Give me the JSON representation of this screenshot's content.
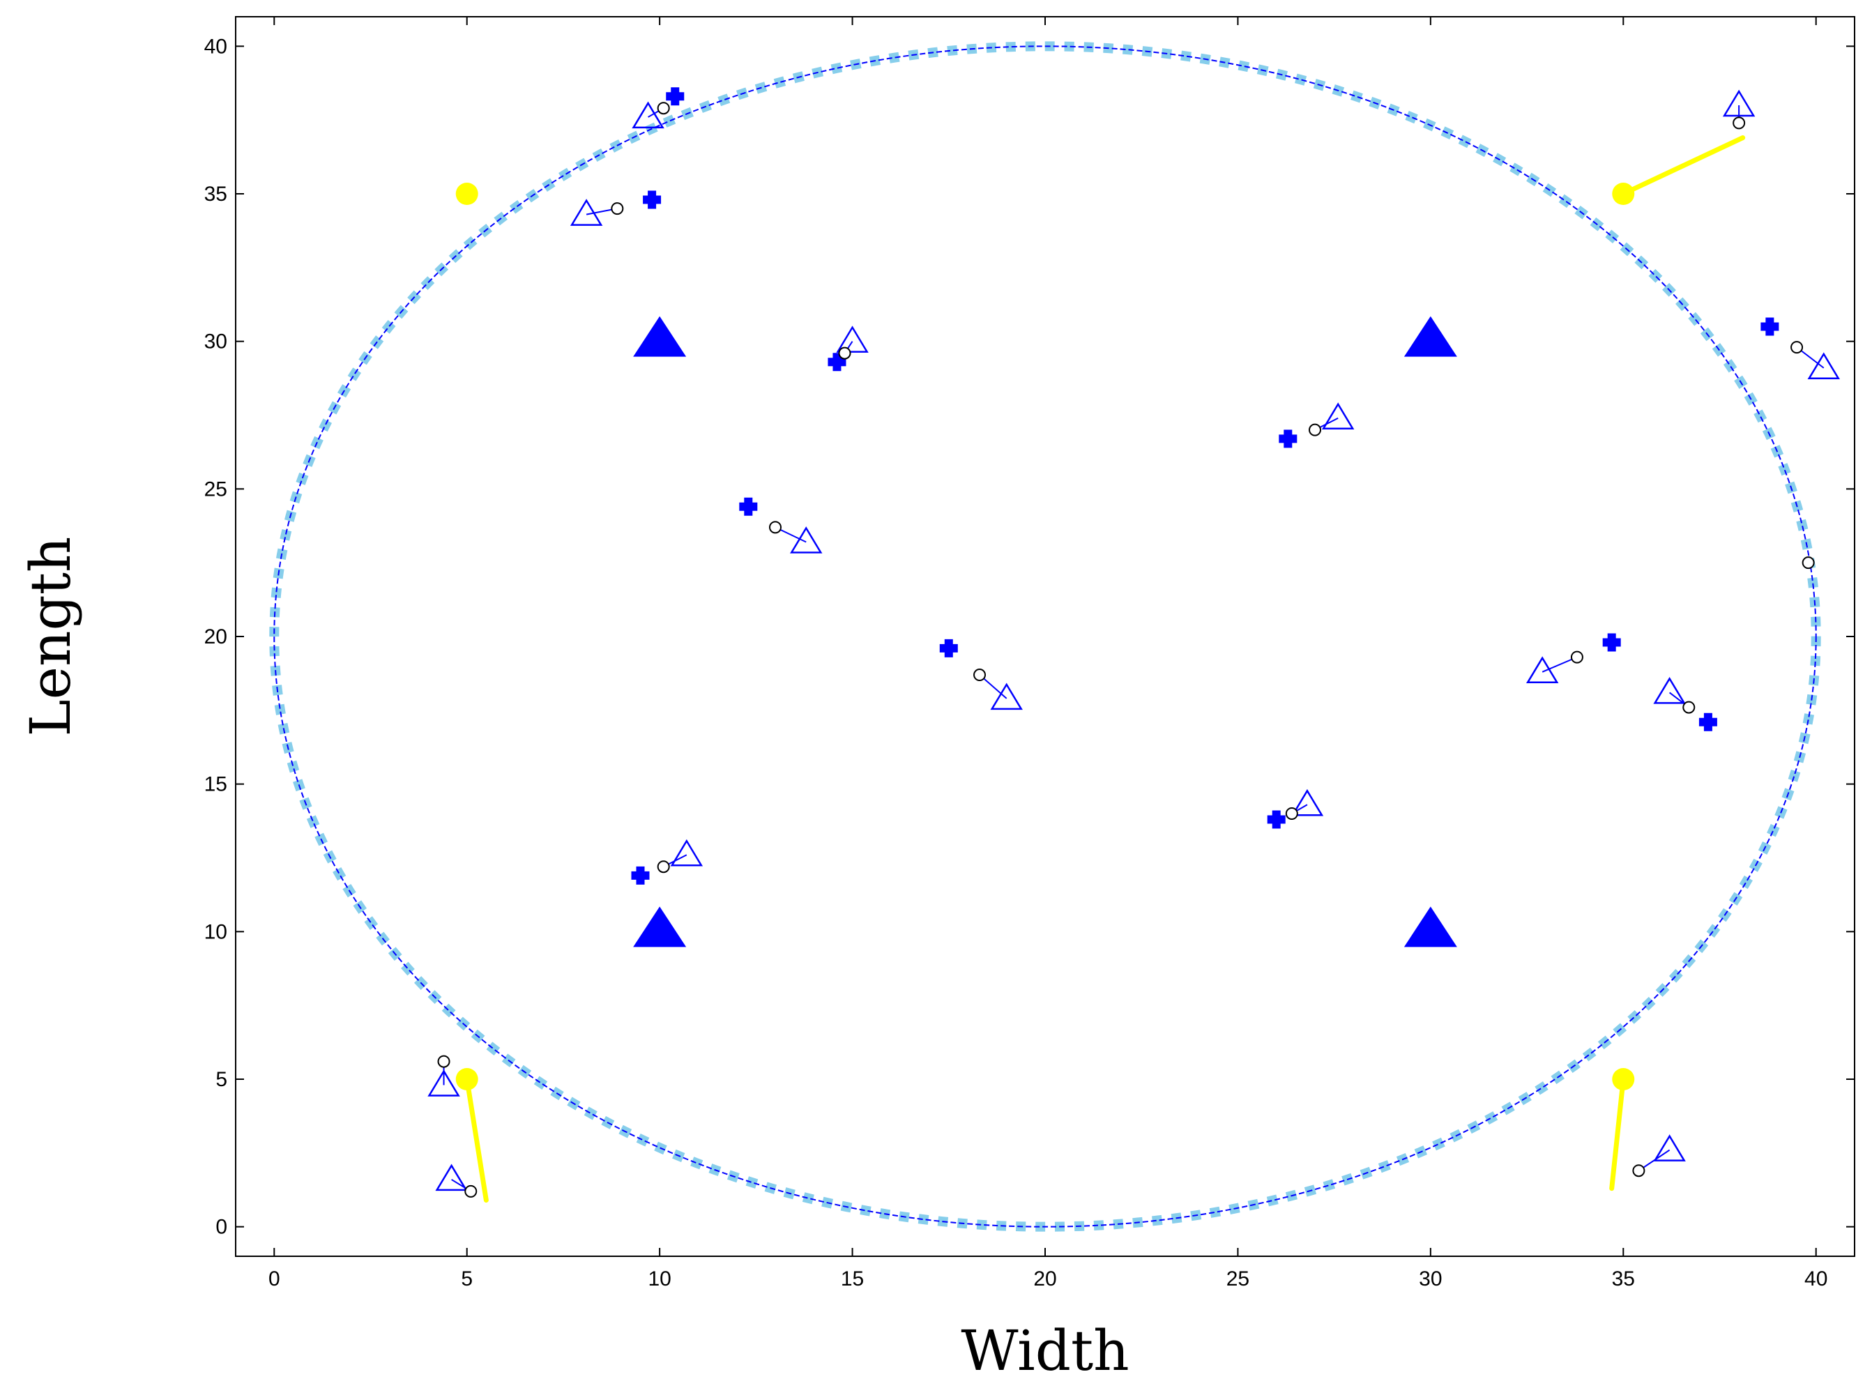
{
  "chart_data": {
    "type": "scatter",
    "xlabel": "Width",
    "ylabel": "Length",
    "xlim": [
      -1,
      41
    ],
    "ylim": [
      -1,
      41
    ],
    "x_ticks": [
      0,
      5,
      10,
      15,
      20,
      25,
      30,
      35,
      40
    ],
    "y_ticks": [
      0,
      5,
      10,
      15,
      20,
      25,
      30,
      35,
      40
    ],
    "grid": false,
    "boundary_ellipse": {
      "center": [
        20,
        20
      ],
      "radius_x": 20,
      "radius_y": 20,
      "line_color": "#0000ff",
      "marker_color": "#87ceeb"
    },
    "filled_triangles": {
      "color": "#0000ff",
      "points": [
        [
          10,
          30
        ],
        [
          30,
          30
        ],
        [
          10,
          10
        ],
        [
          30,
          10
        ]
      ]
    },
    "yellow_nodes": {
      "color": "#ffff00",
      "points": [
        [
          5,
          35
        ],
        [
          35,
          35
        ],
        [
          5,
          5
        ],
        [
          35,
          5
        ]
      ],
      "segments": [
        {
          "from": [
            35,
            35
          ],
          "to": [
            38.1,
            36.9
          ]
        },
        {
          "from": [
            5,
            5
          ],
          "to": [
            5.5,
            0.9
          ]
        },
        {
          "from": [
            35,
            5
          ],
          "to": [
            34.7,
            1.3
          ]
        }
      ]
    },
    "target_tracks": {
      "line_color": "#0000ff",
      "tracks": [
        {
          "cross": [
            10.4,
            38.3
          ],
          "circle": [
            10.1,
            37.9
          ],
          "triangle": [
            9.7,
            37.6
          ]
        },
        {
          "cross": [
            9.8,
            34.8
          ],
          "circle": [
            8.9,
            34.5
          ],
          "triangle": [
            8.1,
            34.3
          ]
        },
        {
          "cross": [
            14.6,
            29.3
          ],
          "circle": [
            14.8,
            29.6
          ],
          "triangle": [
            15.0,
            30.0
          ]
        },
        {
          "cross": [
            12.3,
            24.4
          ],
          "circle": [
            13.0,
            23.7
          ],
          "triangle": [
            13.8,
            23.2
          ]
        },
        {
          "cross": [
            17.5,
            19.6
          ],
          "circle": [
            18.3,
            18.7
          ],
          "triangle": [
            19.0,
            17.9
          ]
        },
        {
          "cross": [
            9.5,
            11.9
          ],
          "circle": [
            10.1,
            12.2
          ],
          "triangle": [
            10.7,
            12.6
          ]
        },
        {
          "cross": null,
          "circle": [
            4.4,
            5.6
          ],
          "triangle": [
            4.4,
            4.8
          ]
        },
        {
          "cross": null,
          "circle": [
            5.1,
            1.2
          ],
          "triangle": [
            4.6,
            1.6
          ]
        },
        {
          "cross": [
            26.3,
            26.7
          ],
          "circle": [
            27.0,
            27.0
          ],
          "triangle": [
            27.6,
            27.4
          ]
        },
        {
          "cross": [
            26.0,
            13.8
          ],
          "circle": [
            26.4,
            14.0
          ],
          "triangle": [
            26.8,
            14.3
          ]
        },
        {
          "cross": [
            34.7,
            19.8
          ],
          "circle": [
            33.8,
            19.3
          ],
          "triangle": [
            32.9,
            18.8
          ]
        },
        {
          "cross": [
            37.2,
            17.1
          ],
          "circle": [
            36.7,
            17.6
          ],
          "triangle": [
            36.2,
            18.1
          ]
        },
        {
          "cross": [
            38.8,
            30.5
          ],
          "circle": [
            39.5,
            29.8
          ],
          "triangle": [
            40.2,
            29.1
          ]
        },
        {
          "cross": null,
          "circle": [
            38.0,
            37.4
          ],
          "triangle": [
            38.0,
            38.0
          ]
        },
        {
          "cross": null,
          "circle": [
            39.8,
            22.5
          ],
          "triangle": null
        },
        {
          "cross": null,
          "circle": [
            35.4,
            1.9
          ],
          "triangle": [
            36.2,
            2.6
          ]
        }
      ]
    }
  }
}
